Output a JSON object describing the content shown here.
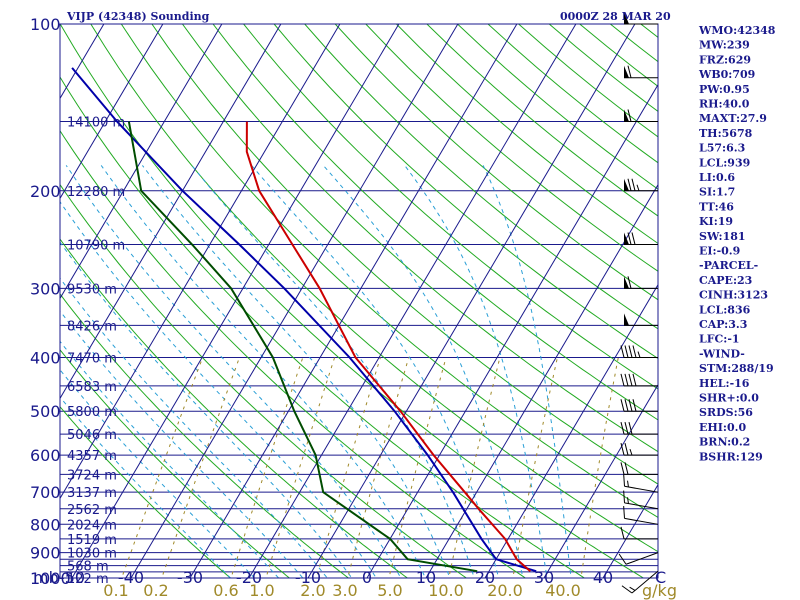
{
  "header": {
    "title": "VIJP (42348) Sounding",
    "valid_time": "0000Z 28 MAR 20"
  },
  "indices": [
    "WMO:42348",
    "MW:239",
    "FRZ:629",
    "WB0:709",
    "PW:0.95",
    "RH:40.0",
    "MAXT:27.9",
    "TH:5678",
    "L57:6.3",
    "LCL:939",
    "LI:0.6",
    "SI:1.7",
    "TT:46",
    "KI:19",
    "SW:181",
    "EI:-0.9",
    "-PARCEL-",
    "CAPE:23",
    "CINH:3123",
    "LCL:836",
    "CAP:3.3",
    "LFC:-1",
    "-WIND-",
    "STM:288/19",
    "HEL:-16",
    "SHR+:0.0",
    "SRDS:56",
    "EHI:0.0",
    "BRN:0.2",
    "BSHR:129"
  ],
  "chart_data": {
    "type": "skew-t",
    "title": "VIJP (42348) Sounding",
    "pressure_axis": {
      "unit_label": "mb",
      "range_hpa": [
        1000,
        100
      ],
      "scale": "log",
      "tick_labels": [
        "100",
        "200",
        "300",
        "400",
        "500",
        "600",
        "700",
        "800",
        "900",
        "1000"
      ]
    },
    "temperature_axis": {
      "unit": "C",
      "tick_labels": [
        "-50",
        "-40",
        "-30",
        "-20",
        "-10",
        "0",
        "10",
        "20",
        "30",
        "40"
      ]
    },
    "mixing_ratio_axis": {
      "unit": "g/kg",
      "tick_labels": [
        "0.1",
        "0.2",
        "0.6",
        "1.0",
        "2.0",
        "3.0",
        "5.0",
        "10.0",
        "20.0",
        "40.0"
      ]
    },
    "height_labels": [
      {
        "p": 150,
        "label": "14100 m"
      },
      {
        "p": 200,
        "label": "12280 m"
      },
      {
        "p": 250,
        "label": "10790 m"
      },
      {
        "p": 300,
        "label": "9530 m"
      },
      {
        "p": 350,
        "label": "8426 m"
      },
      {
        "p": 400,
        "label": "7470 m"
      },
      {
        "p": 450,
        "label": "6583 m"
      },
      {
        "p": 500,
        "label": "5800 m"
      },
      {
        "p": 550,
        "label": "5046 m"
      },
      {
        "p": 600,
        "label": "4357 m"
      },
      {
        "p": 650,
        "label": "3724 m"
      },
      {
        "p": 700,
        "label": "3137 m"
      },
      {
        "p": 750,
        "label": "2562 m"
      },
      {
        "p": 800,
        "label": "2024 m"
      },
      {
        "p": 850,
        "label": "1519 m"
      },
      {
        "p": 900,
        "label": "1030 m"
      },
      {
        "p": 950,
        "label": "568 m"
      },
      {
        "p": 1000,
        "label": "122 m"
      }
    ],
    "temperature_profile": [
      {
        "p": 972,
        "t": 27.0
      },
      {
        "p": 925,
        "t": 23.5
      },
      {
        "p": 850,
        "t": 19.5
      },
      {
        "p": 750,
        "t": 12.0
      },
      {
        "p": 700,
        "t": 8.0
      },
      {
        "p": 600,
        "t": -1.0
      },
      {
        "p": 500,
        "t": -11.0
      },
      {
        "p": 400,
        "t": -24.0
      },
      {
        "p": 300,
        "t": -37.0
      },
      {
        "p": 250,
        "t": -46.0
      },
      {
        "p": 200,
        "t": -57.0
      },
      {
        "p": 170,
        "t": -63.0
      },
      {
        "p": 150,
        "t": -66.0
      }
    ],
    "dewpoint_profile": [
      {
        "p": 972,
        "td": 18.0
      },
      {
        "p": 925,
        "td": 5.0
      },
      {
        "p": 850,
        "td": 0.0
      },
      {
        "p": 700,
        "td": -16.0
      },
      {
        "p": 600,
        "td": -21.0
      },
      {
        "p": 500,
        "td": -29.0
      },
      {
        "p": 400,
        "td": -38.0
      },
      {
        "p": 300,
        "td": -52.0
      },
      {
        "p": 250,
        "td": -63.0
      },
      {
        "p": 200,
        "td": -77.0
      },
      {
        "p": 150,
        "td": -86.0
      }
    ],
    "parcel_profile": [
      {
        "p": 972,
        "t": 28.0
      },
      {
        "p": 925,
        "t": 20.0
      },
      {
        "p": 850,
        "t": 15.5
      },
      {
        "p": 700,
        "t": 6.0
      },
      {
        "p": 600,
        "t": -2.0
      },
      {
        "p": 500,
        "t": -12.0
      },
      {
        "p": 400,
        "t": -25.0
      },
      {
        "p": 300,
        "t": -43.0
      },
      {
        "p": 250,
        "t": -55.0
      },
      {
        "p": 200,
        "t": -70.0
      },
      {
        "p": 150,
        "t": -88.0
      },
      {
        "p": 120,
        "t": -101.0
      }
    ],
    "winds": [
      {
        "p": 972,
        "dir": 230,
        "kt": 15
      },
      {
        "p": 900,
        "dir": 250,
        "kt": 10
      },
      {
        "p": 850,
        "dir": 270,
        "kt": 10
      },
      {
        "p": 800,
        "dir": 280,
        "kt": 10
      },
      {
        "p": 750,
        "dir": 280,
        "kt": 15
      },
      {
        "p": 700,
        "dir": 280,
        "kt": 15
      },
      {
        "p": 650,
        "dir": 270,
        "kt": 20
      },
      {
        "p": 600,
        "dir": 270,
        "kt": 25
      },
      {
        "p": 550,
        "dir": 270,
        "kt": 30
      },
      {
        "p": 500,
        "dir": 270,
        "kt": 40
      },
      {
        "p": 450,
        "dir": 270,
        "kt": 40
      },
      {
        "p": 400,
        "dir": 270,
        "kt": 45
      },
      {
        "p": 350,
        "dir": 270,
        "kt": 50
      },
      {
        "p": 300,
        "dir": 270,
        "kt": 60
      },
      {
        "p": 250,
        "dir": 270,
        "kt": 70
      },
      {
        "p": 200,
        "dir": 270,
        "kt": 75
      },
      {
        "p": 150,
        "dir": 270,
        "kt": 60
      },
      {
        "p": 125,
        "dir": 270,
        "kt": 60
      },
      {
        "p": 100,
        "dir": 270,
        "kt": 50
      }
    ],
    "isobars_hpa": [
      100,
      150,
      200,
      250,
      300,
      350,
      400,
      450,
      500,
      550,
      600,
      650,
      700,
      750,
      800,
      850,
      900,
      925,
      950,
      975,
      1000
    ],
    "isotherms_c": [
      -150,
      -140,
      -130,
      -120,
      -110,
      -100,
      -90,
      -80,
      -70,
      -60,
      -50,
      -40,
      -30,
      -20,
      -10,
      0,
      10,
      20,
      30,
      40,
      50
    ],
    "mixing_ratios_gkg": [
      0.1,
      0.2,
      0.6,
      1.0,
      2.0,
      3.0,
      5.0,
      10.0,
      20.0,
      40.0
    ],
    "colors": {
      "isobar": "#1a1a8c",
      "isotherm": "#1a1a8c",
      "dry_adiabat": "#22aa22",
      "moist_adiabat": "#2a9fd6",
      "mixing_ratio": "#a08a2a",
      "temperature": "#cc0000",
      "dewpoint": "#004d00",
      "parcel": "#0000aa",
      "wind_barb": "#000000",
      "text": "#1a1a8c"
    }
  }
}
